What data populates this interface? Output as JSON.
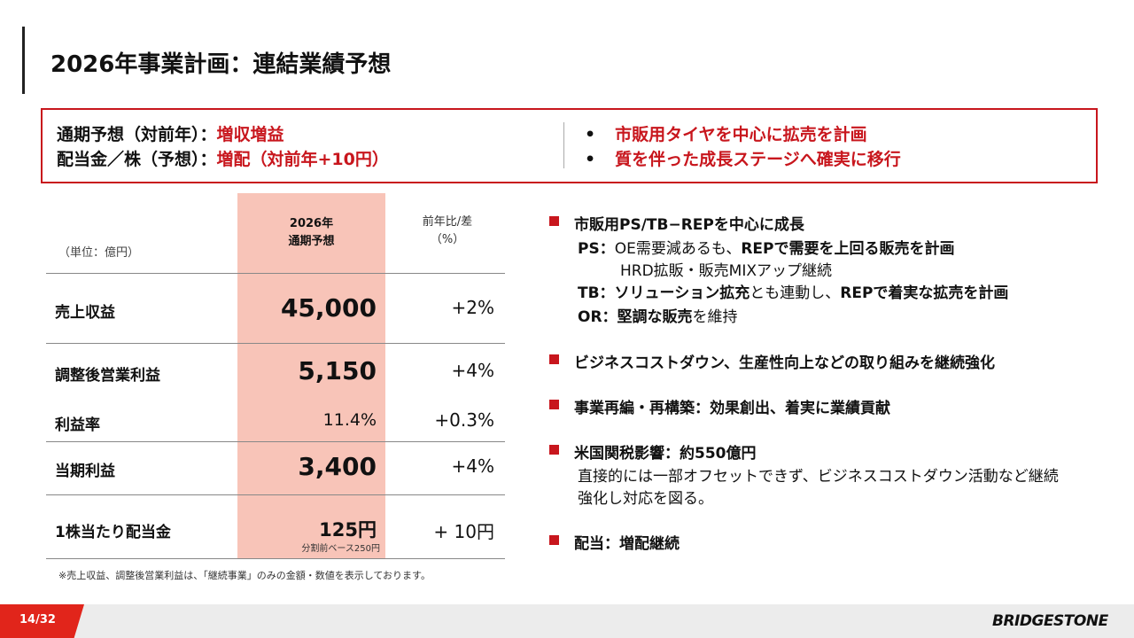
{
  "title": "2026年事業計画：連結業績予想",
  "summary": {
    "left": [
      {
        "label": "通期予想（対前年）：",
        "value": "増収増益"
      },
      {
        "label": "配当金／株（予想）：",
        "value": "増配（対前年+10円）"
      }
    ],
    "bullet": "•",
    "right": [
      "市販用タイヤを中心に拡売を計画",
      "質を伴った成長ステージへ確実に移行"
    ]
  },
  "table": {
    "unit": "（単位：億円）",
    "col1_line1": "2026年",
    "col1_line2": "通期予想",
    "col2_line1": "前年比/差",
    "col2_line2": "（%）",
    "rows": [
      {
        "label": "売上収益",
        "value": "45,000",
        "yoy": "+2%"
      },
      {
        "label": "調整後営業利益",
        "value": "5,150",
        "yoy": "+4%"
      },
      {
        "label": "利益率",
        "value": "11.4%",
        "yoy": "+0.3%"
      },
      {
        "label": "当期利益",
        "value": "3,400",
        "yoy": "+4%"
      },
      {
        "label": "1株当たり配当金",
        "value": "125円",
        "yoy": "+ 10円",
        "sub": "分割前ベース250円"
      }
    ],
    "footnote": "※売上収益、調整後営業利益は、「継続事業」のみの金額・数値を表示しております。"
  },
  "points": {
    "p1": "市販用PS/TB−REPを中心に成長",
    "p1_ps_label": "PS：",
    "p1_ps_a": "OE需要減あるも、",
    "p1_ps_b": "REPで需要を上回る販売を計画",
    "p1_ps2": "HRD拡販・販売MIXアップ継続",
    "p1_tb_label": "TB：",
    "p1_tb_a": "ソリューション拡充",
    "p1_tb_b": "とも連動し、",
    "p1_tb_c": "REPで着実な拡売を計画",
    "p1_or_label": "OR：",
    "p1_or_a": "堅調な販売",
    "p1_or_b": "を維持",
    "p2": "ビジネスコストダウン、生産性向上などの取り組みを継続強化",
    "p3": "事業再編・再構築：効果創出、着実に業績貢献",
    "p4": "米国関税影響：約550億円",
    "p4_l1": "直接的には一部オフセットできず、ビジネスコストダウン活動など継続",
    "p4_l2": "強化し対応を図る。",
    "p5": "配当：増配継続"
  },
  "footer": {
    "page": "14/32",
    "logo": "BRIDGESTONE"
  },
  "colors": {
    "accent": "#c8161d",
    "highlight": "#f8c4b8",
    "footer_red": "#e1251b"
  }
}
